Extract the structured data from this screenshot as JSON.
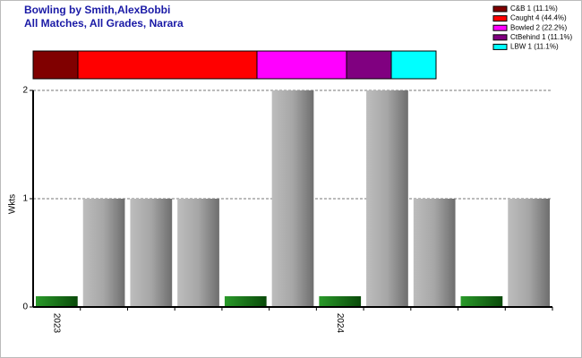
{
  "chart_data": [
    {
      "type": "stacked-bar",
      "series": [
        {
          "name": "C&B 1 (11.1%)",
          "color": "#800000",
          "values": [
            1
          ]
        },
        {
          "name": "Caught 4 (44.4%)",
          "color": "#ff0000",
          "values": [
            4
          ]
        },
        {
          "name": "Bowled 2 (22.2%)",
          "color": "#ff00ff",
          "values": [
            2
          ]
        },
        {
          "name": "CtBehind 1 (11.1%)",
          "color": "#800080",
          "values": [
            1
          ]
        },
        {
          "name": "LBW 1 (11.1%)",
          "color": "#00ffff",
          "values": [
            1
          ]
        }
      ]
    },
    {
      "type": "bar",
      "title": "Bowling by Smith,AlexBobbi",
      "subtitle": "All Matches, All Grades, Narara",
      "y_label": "Wkts",
      "categories": [
        "2023",
        null,
        null,
        null,
        null,
        null,
        "2024",
        null,
        null,
        null,
        null
      ],
      "values": [
        0,
        1,
        1,
        1,
        0,
        2,
        0,
        2,
        1,
        0,
        1
      ],
      "color": "#a0a0a0",
      "zero_color": "#1a7a1a",
      "ylim": [
        0,
        2
      ],
      "yticks": [
        0,
        1,
        2
      ],
      "grid": true
    }
  ]
}
